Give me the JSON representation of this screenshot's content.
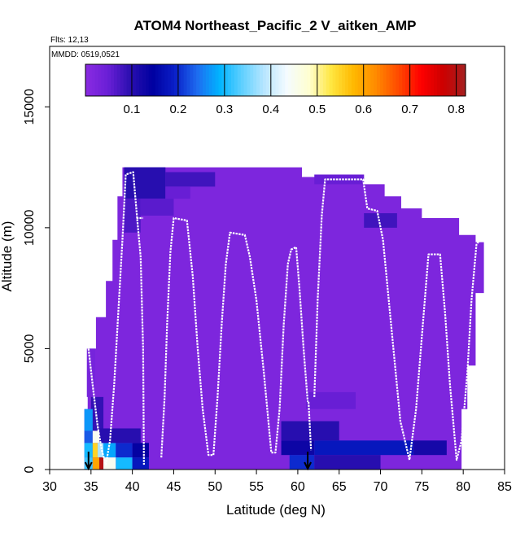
{
  "chart_data": {
    "type": "heatmap",
    "title": "ATOM4 Northeast_Pacific_2 V_aitken_AMP",
    "subtitle": "Flts: 12,13",
    "annotation": "MMDD: 0519,0521",
    "xlabel": "Latitude (deg N)",
    "ylabel": "Altitude (m)",
    "xlim": [
      30,
      85
    ],
    "ylim": [
      0,
      17500
    ],
    "x_ticks": [
      "30",
      "35",
      "40",
      "45",
      "50",
      "55",
      "60",
      "65",
      "70",
      "75",
      "80",
      "85"
    ],
    "y_ticks": [
      "0",
      "5000",
      "10000",
      "15000"
    ],
    "colorbar": {
      "range": [
        0.0,
        0.82
      ],
      "ticks": [
        "0.1",
        "0.2",
        "0.3",
        "0.4",
        "0.5",
        "0.6",
        "0.7",
        "0.8"
      ],
      "colors": [
        "#8a2be2",
        "#6a1fd6",
        "#2a0fb0",
        "#0000a0",
        "#0a1fc8",
        "#1e6cf0",
        "#00b4ff",
        "#5fd0ff",
        "#b8e6ff",
        "#f4fbff",
        "#ffffd0",
        "#ffe640",
        "#ffb800",
        "#ff8a00",
        "#ff4a00",
        "#ff0000",
        "#cc0000",
        "#a52020"
      ]
    },
    "background_value": 0.02,
    "cells": [
      {
        "x0": 39,
        "x1": 44,
        "y0": 11200,
        "y1": 12500,
        "v": 0.1
      },
      {
        "x0": 44,
        "x1": 50,
        "y0": 11700,
        "y1": 12300,
        "v": 0.08
      },
      {
        "x0": 39,
        "x1": 41,
        "y0": 9800,
        "y1": 11200,
        "v": 0.07
      },
      {
        "x0": 41,
        "x1": 45,
        "y0": 10500,
        "y1": 11200,
        "v": 0.06
      },
      {
        "x0": 44,
        "x1": 47,
        "y0": 11200,
        "y1": 11700,
        "v": 0.05
      },
      {
        "x0": 62,
        "x1": 68,
        "y0": 11800,
        "y1": 12200,
        "v": 0.05
      },
      {
        "x0": 68,
        "x1": 72,
        "y0": 10000,
        "y1": 10600,
        "v": 0.08
      },
      {
        "x0": 34.5,
        "x1": 35.5,
        "y0": 3000,
        "y1": 5000,
        "v": 0.03
      },
      {
        "x0": 35,
        "x1": 36.5,
        "y0": 1500,
        "y1": 3000,
        "v": 0.09
      },
      {
        "x0": 34.2,
        "x1": 35.2,
        "y0": 1600,
        "y1": 2500,
        "v": 0.27
      },
      {
        "x0": 34.2,
        "x1": 35.2,
        "y0": 1100,
        "y1": 1600,
        "v": 0.23
      },
      {
        "x0": 35.2,
        "x1": 36.3,
        "y0": 1100,
        "y1": 1600,
        "v": 0.45
      },
      {
        "x0": 34.2,
        "x1": 35.2,
        "y0": 500,
        "y1": 1100,
        "v": 0.3
      },
      {
        "x0": 35.2,
        "x1": 35.8,
        "y0": 500,
        "y1": 1100,
        "v": 0.55
      },
      {
        "x0": 35.8,
        "x1": 36.5,
        "y0": 500,
        "y1": 1100,
        "v": 0.38
      },
      {
        "x0": 36.5,
        "x1": 38.0,
        "y0": 500,
        "y1": 1100,
        "v": 0.28
      },
      {
        "x0": 38.0,
        "x1": 40.0,
        "y0": 500,
        "y1": 1100,
        "v": 0.2
      },
      {
        "x0": 40.0,
        "x1": 42.0,
        "y0": 500,
        "y1": 1100,
        "v": 0.14
      },
      {
        "x0": 34.2,
        "x1": 35.2,
        "y0": 0,
        "y1": 500,
        "v": 0.32
      },
      {
        "x0": 35.2,
        "x1": 36.0,
        "y0": 0,
        "y1": 500,
        "v": 0.6
      },
      {
        "x0": 36.0,
        "x1": 36.5,
        "y0": 0,
        "y1": 500,
        "v": 0.8
      },
      {
        "x0": 36.5,
        "x1": 38.0,
        "y0": 0,
        "y1": 500,
        "v": 0.45
      },
      {
        "x0": 38.0,
        "x1": 40.0,
        "y0": 0,
        "y1": 500,
        "v": 0.3
      },
      {
        "x0": 40.0,
        "x1": 42.0,
        "y0": 0,
        "y1": 500,
        "v": 0.18
      },
      {
        "x0": 36,
        "x1": 41,
        "y0": 1100,
        "y1": 1700,
        "v": 0.1
      },
      {
        "x0": 58,
        "x1": 65,
        "y0": 1200,
        "y1": 2000,
        "v": 0.1
      },
      {
        "x0": 58,
        "x1": 62,
        "y0": 600,
        "y1": 1200,
        "v": 0.13
      },
      {
        "x0": 62,
        "x1": 74,
        "y0": 600,
        "y1": 1200,
        "v": 0.18
      },
      {
        "x0": 74,
        "x1": 78,
        "y0": 600,
        "y1": 1200,
        "v": 0.12
      },
      {
        "x0": 59,
        "x1": 62,
        "y0": 0,
        "y1": 600,
        "v": 0.2
      },
      {
        "x0": 62,
        "x1": 70,
        "y0": 0,
        "y1": 600,
        "v": 0.1
      },
      {
        "x0": 61,
        "x1": 67,
        "y0": 2500,
        "y1": 3200,
        "v": 0.05
      }
    ],
    "profile_segments": [
      [
        [
          34.7,
          5000
        ],
        [
          35.2,
          3500
        ],
        [
          35.8,
          1800
        ],
        [
          36.3,
          800
        ],
        [
          36.8,
          200
        ],
        [
          37.3,
          1200
        ],
        [
          37.8,
          3500
        ],
        [
          38.3,
          6500
        ],
        [
          38.8,
          9500
        ],
        [
          39.2,
          12200
        ],
        [
          40.1,
          12300
        ],
        [
          40.6,
          10300
        ],
        [
          41.0,
          8800
        ],
        [
          41.3,
          5000
        ],
        [
          41.4,
          200
        ]
      ],
      [
        [
          40.5,
          10400
        ],
        [
          41.3,
          10400
        ]
      ],
      [
        [
          43.5,
          500
        ],
        [
          43.9,
          3000
        ],
        [
          44.2,
          6000
        ],
        [
          44.6,
          9000
        ],
        [
          45.0,
          10400
        ],
        [
          46.6,
          10300
        ],
        [
          47.3,
          8000
        ],
        [
          47.9,
          5000
        ],
        [
          48.5,
          2500
        ],
        [
          49.2,
          600
        ],
        [
          49.8,
          600
        ],
        [
          50.3,
          3000
        ],
        [
          50.8,
          6000
        ],
        [
          51.3,
          8500
        ],
        [
          51.8,
          9800
        ],
        [
          53.6,
          9700
        ],
        [
          54.2,
          8800
        ],
        [
          55.0,
          7000
        ],
        [
          55.9,
          4000
        ],
        [
          56.8,
          700
        ],
        [
          57.3,
          700
        ],
        [
          57.8,
          2500
        ],
        [
          58.3,
          6000
        ],
        [
          58.8,
          8500
        ],
        [
          59.2,
          9100
        ],
        [
          59.8,
          9200
        ],
        [
          60.2,
          7500
        ],
        [
          60.7,
          5000
        ],
        [
          61.2,
          2800
        ]
      ],
      [
        [
          61.3,
          2800
        ],
        [
          61.6,
          800
        ]
      ],
      [
        [
          62.0,
          3000
        ],
        [
          62.4,
          7000
        ],
        [
          62.9,
          10500
        ],
        [
          63.3,
          12000
        ],
        [
          67.9,
          12000
        ],
        [
          68.4,
          10800
        ],
        [
          69.6,
          10700
        ],
        [
          70.3,
          9500
        ],
        [
          71.0,
          7000
        ],
        [
          71.7,
          4500
        ],
        [
          72.4,
          2000
        ],
        [
          73.5,
          400
        ],
        [
          74.3,
          2500
        ],
        [
          75.0,
          5500
        ],
        [
          75.8,
          8900
        ],
        [
          77.2,
          8900
        ],
        [
          77.8,
          6500
        ],
        [
          78.4,
          3500
        ],
        [
          79.2,
          400
        ],
        [
          79.8,
          1200
        ],
        [
          80.5,
          4000
        ],
        [
          81.0,
          7000
        ],
        [
          81.6,
          9300
        ],
        [
          82.0,
          9500
        ]
      ]
    ],
    "arrows_at_latitude": [
      34.7,
      61.2
    ]
  }
}
